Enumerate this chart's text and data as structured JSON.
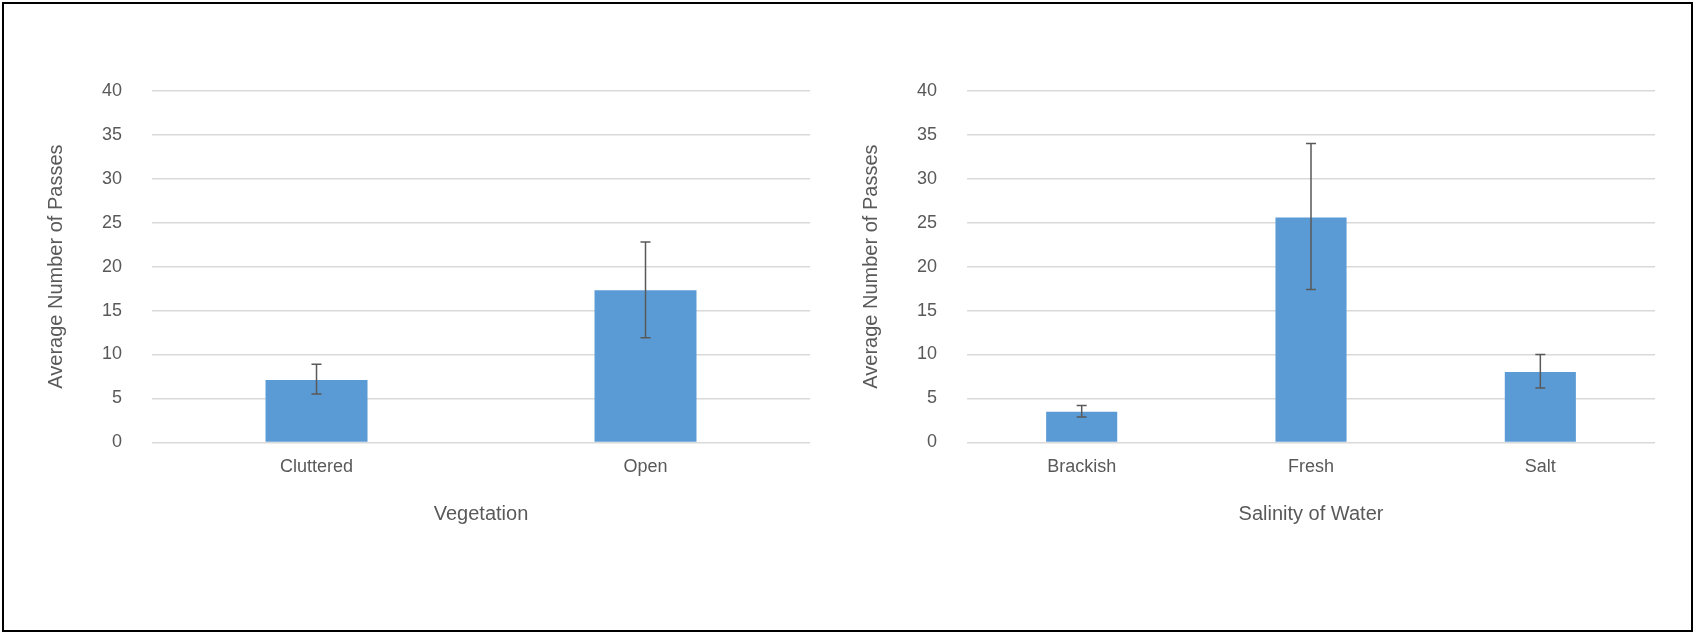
{
  "chart_data": [
    {
      "type": "bar",
      "xlabel": "Vegetation",
      "ylabel": "Average Number of Passes",
      "categories": [
        "Cluttered",
        "Open"
      ],
      "values": [
        7.1,
        17.3
      ],
      "color": "#5b9bd5",
      "errors": [
        [
          5.5,
          8.9
        ],
        [
          11.9,
          22.8
        ]
      ],
      "ylim": [
        0,
        40
      ],
      "yticks": [
        0,
        5,
        10,
        15,
        20,
        25,
        30,
        35,
        40
      ],
      "grid": "y",
      "legend": false
    },
    {
      "type": "bar",
      "xlabel": "Salinity of Water",
      "ylabel": "Average Number of Passes",
      "categories": [
        "Brackish",
        "Fresh",
        "Salt"
      ],
      "values": [
        3.5,
        25.6,
        8.0
      ],
      "color": "#5b9bd5",
      "errors": [
        [
          2.9,
          4.2
        ],
        [
          17.4,
          34.0
        ],
        [
          6.2,
          10.0
        ]
      ],
      "ylim": [
        0,
        40
      ],
      "yticks": [
        0,
        5,
        10,
        15,
        20,
        25,
        30,
        35,
        40
      ],
      "grid": "y",
      "legend": false
    }
  ]
}
